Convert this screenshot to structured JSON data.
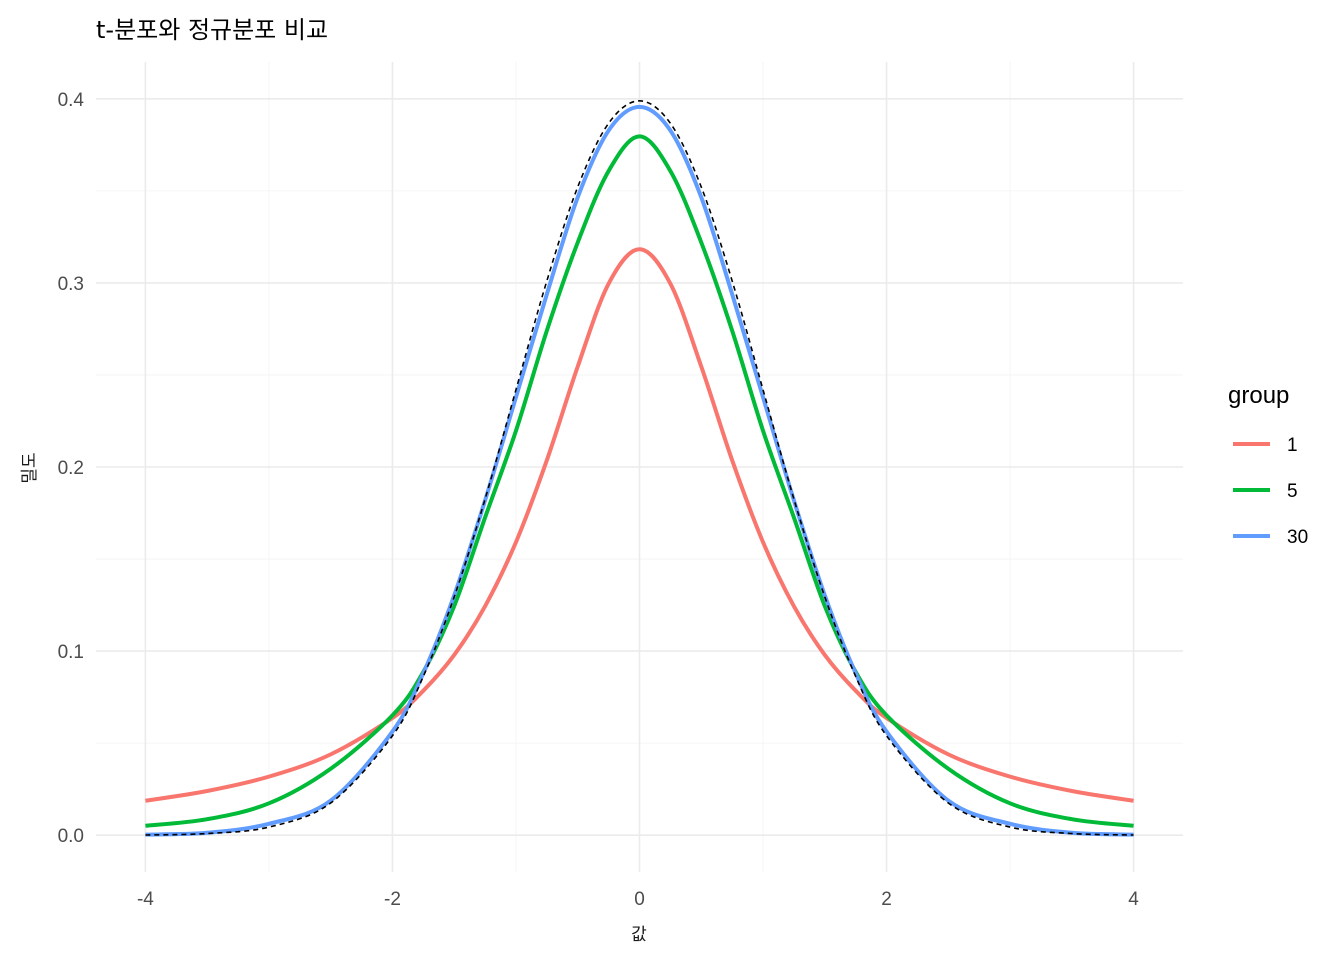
{
  "chart_data": {
    "type": "line",
    "title": "t-분포와 정규분포 비교",
    "xlabel": "값",
    "ylabel": "밀도",
    "xlim": [
      -4.4,
      4.4
    ],
    "ylim": [
      -0.02,
      0.42
    ],
    "x_ticks": [
      -4,
      -2,
      0,
      2,
      4
    ],
    "x_tick_labels": [
      "-4",
      "-2",
      "0",
      "2",
      "4"
    ],
    "y_ticks": [
      0.0,
      0.1,
      0.2,
      0.3,
      0.4
    ],
    "y_tick_labels": [
      "0.0",
      "0.1",
      "0.2",
      "0.3",
      "0.4"
    ],
    "grid": true,
    "legend": {
      "title": "group",
      "position": "right"
    },
    "x": [
      -4,
      -3.5,
      -3,
      -2.5,
      -2,
      -1.75,
      -1.5,
      -1.25,
      -1,
      -0.75,
      -0.5,
      -0.25,
      0,
      0.25,
      0.5,
      0.75,
      1,
      1.25,
      1.5,
      1.75,
      2,
      2.5,
      3,
      3.5,
      4
    ],
    "series": [
      {
        "name": "1",
        "color": "#F8766D",
        "values": [
          0.0187,
          0.024,
          0.0318,
          0.0439,
          0.0637,
          0.0785,
          0.0979,
          0.1244,
          0.1592,
          0.2037,
          0.2546,
          0.2996,
          0.3183,
          0.2996,
          0.2546,
          0.2037,
          0.1592,
          0.1244,
          0.0979,
          0.0785,
          0.0637,
          0.0439,
          0.0318,
          0.024,
          0.0187
        ]
      },
      {
        "name": "5",
        "color": "#00BA38",
        "values": [
          0.0051,
          0.0087,
          0.0173,
          0.0361,
          0.0651,
          0.0887,
          0.1245,
          0.1726,
          0.2197,
          0.2741,
          0.322,
          0.3608,
          0.3796,
          0.3608,
          0.322,
          0.2741,
          0.2197,
          0.1726,
          0.1245,
          0.0887,
          0.0651,
          0.0361,
          0.0173,
          0.0087,
          0.0051
        ]
      },
      {
        "name": "30",
        "color": "#619CFF",
        "values": [
          0.0003,
          0.0013,
          0.0062,
          0.0188,
          0.0563,
          0.088,
          0.1303,
          0.1819,
          0.2379,
          0.2939,
          0.3465,
          0.3828,
          0.3956,
          0.3828,
          0.3465,
          0.2939,
          0.2379,
          0.1819,
          0.1303,
          0.088,
          0.0563,
          0.0188,
          0.0062,
          0.0013,
          0.0003
        ]
      }
    ],
    "reference": {
      "color": "#000000",
      "style": "dashed",
      "values": [
        0.0001,
        0.0009,
        0.0044,
        0.0175,
        0.054,
        0.0863,
        0.1295,
        0.1826,
        0.242,
        0.3011,
        0.3521,
        0.3867,
        0.3989,
        0.3867,
        0.3521,
        0.3011,
        0.242,
        0.1826,
        0.1295,
        0.0863,
        0.054,
        0.0175,
        0.0044,
        0.0009,
        0.0001
      ]
    }
  }
}
